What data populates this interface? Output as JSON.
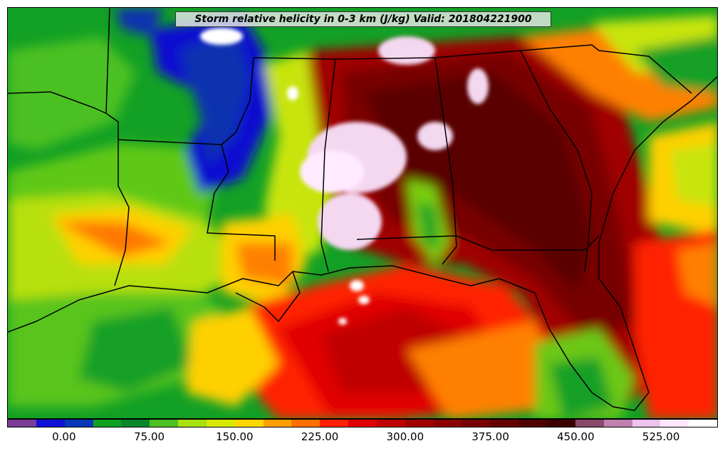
{
  "title": "Storm relative helicity in 0-3 km (J/kg) Valid: 201804221900",
  "colorbar": {
    "colors": [
      "#7a3c96",
      "#1010d8",
      "#0838b8",
      "#10a020",
      "#08882a",
      "#4cc020",
      "#a8e010",
      "#d8e800",
      "#ffd800",
      "#ffa000",
      "#ff7000",
      "#ff2000",
      "#e00000",
      "#c00000",
      "#a00000",
      "#8c0000",
      "#780000",
      "#640000",
      "#500000",
      "#3c0000",
      "#8a4a6a",
      "#c080b0",
      "#ecc4ec",
      "#ffe8ff",
      "#ffffff"
    ],
    "ticks": [
      "0.00",
      "75.00",
      "150.00",
      "225.00",
      "300.00",
      "375.00",
      "450.00",
      "525.00"
    ],
    "tick_values": [
      0,
      75,
      150,
      225,
      300,
      375,
      450,
      525
    ],
    "range": [
      -50,
      575
    ]
  }
}
